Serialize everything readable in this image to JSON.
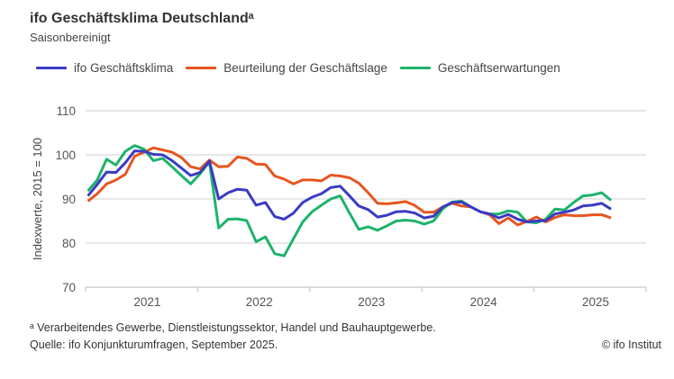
{
  "title": "ifo Geschäftsklima Deutschlandᵃ",
  "subtitle": "Saisonbereinigt",
  "footnote": "ᵃ Verarbeitendes Gewerbe, Dienstleistungssektor, Handel und Bauhauptgewerbe.",
  "source": "Quelle: ifo Konjunkturumfragen, September 2025.",
  "copyright": "© ifo Institut",
  "chart_data": {
    "type": "line",
    "title": "ifo Geschäftsklima Deutschlandᵃ",
    "subtitle": "Saisonbereinigt",
    "xlabel": "",
    "ylabel": "Indexwerte, 2015 = 100",
    "ylim": [
      70,
      110
    ],
    "yticks": [
      70,
      80,
      90,
      100,
      110
    ],
    "xticklabels": [
      "2021",
      "2022",
      "2023",
      "2024",
      "2025"
    ],
    "x_range": [
      "2021-01",
      "2025-09"
    ],
    "frequency": "monthly",
    "grid": true,
    "legend_position": "top",
    "series": [
      {
        "name": "ifo Geschäftsklima",
        "color": "#3b3bc4",
        "values": [
          90.7,
          93.3,
          96.1,
          96.0,
          98.2,
          100.9,
          100.8,
          100.1,
          100.0,
          98.7,
          97.0,
          95.3,
          96.0,
          98.6,
          90.0,
          91.4,
          92.2,
          92.0,
          88.6,
          89.2,
          86.0,
          85.4,
          86.8,
          89.2,
          90.4,
          91.2,
          92.6,
          92.9,
          90.7,
          88.4,
          87.6,
          85.9,
          86.3,
          87.1,
          87.2,
          86.8,
          85.7,
          86.1,
          88.2,
          89.2,
          89.3,
          88.2,
          87.1,
          86.6,
          85.7,
          86.5,
          85.4,
          84.8,
          85.0,
          85.1,
          86.6,
          87.0,
          87.5,
          88.4,
          88.6,
          89.0,
          87.7
        ]
      },
      {
        "name": "Beurteilung der Geschäftslage",
        "color": "#e5561f",
        "values": [
          89.5,
          91.2,
          93.4,
          94.3,
          95.6,
          99.7,
          100.6,
          101.6,
          101.1,
          100.6,
          99.4,
          97.3,
          96.8,
          98.8,
          97.3,
          97.4,
          99.5,
          99.2,
          97.9,
          97.8,
          95.2,
          94.5,
          93.4,
          94.3,
          94.3,
          94.1,
          95.4,
          95.2,
          94.8,
          93.6,
          91.4,
          89.0,
          88.9,
          89.1,
          89.4,
          88.5,
          87.0,
          87.0,
          88.2,
          89.0,
          88.4,
          88.2,
          87.1,
          86.4,
          84.4,
          85.7,
          84.1,
          84.9,
          85.9,
          84.8,
          85.8,
          86.4,
          86.2,
          86.2,
          86.4,
          86.4,
          85.7
        ]
      },
      {
        "name": "Geschäftserwartungen",
        "color": "#1db36b",
        "values": [
          91.8,
          94.3,
          99.0,
          97.7,
          100.8,
          102.1,
          101.3,
          98.7,
          99.2,
          97.3,
          95.3,
          93.4,
          95.7,
          98.4,
          83.4,
          85.4,
          85.5,
          85.1,
          80.3,
          81.4,
          77.6,
          77.1,
          81.0,
          84.8,
          87.1,
          88.6,
          90.0,
          90.7,
          86.8,
          83.1,
          83.7,
          82.9,
          83.9,
          85.0,
          85.2,
          85.0,
          84.3,
          85.0,
          87.8,
          89.3,
          89.5,
          88.2,
          87.1,
          86.6,
          86.6,
          87.3,
          87.0,
          84.8,
          84.6,
          85.4,
          87.7,
          87.5,
          89.2,
          90.7,
          90.9,
          91.4,
          89.7
        ]
      }
    ]
  }
}
